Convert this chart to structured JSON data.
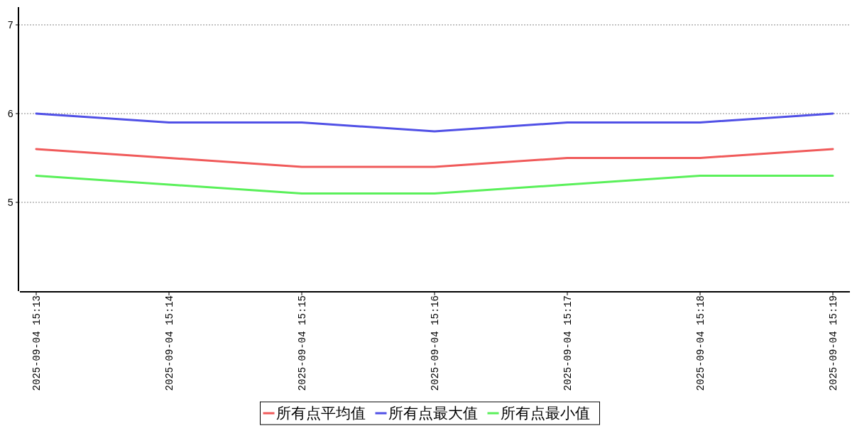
{
  "chart_data": {
    "type": "line",
    "categories": [
      "2025-09-04 15:13",
      "2025-09-04 15:14",
      "2025-09-04 15:15",
      "2025-09-04 15:16",
      "2025-09-04 15:17",
      "2025-09-04 15:18",
      "2025-09-04 15:19"
    ],
    "series": [
      {
        "name": "所有点平均值",
        "color": "#f05a5a",
        "values": [
          5.6,
          5.5,
          5.4,
          5.4,
          5.5,
          5.5,
          5.6
        ]
      },
      {
        "name": "所有点最大值",
        "color": "#5050e6",
        "values": [
          6.0,
          5.9,
          5.9,
          5.8,
          5.9,
          5.9,
          6.0
        ]
      },
      {
        "name": "所有点最小值",
        "color": "#5af05a",
        "values": [
          5.3,
          5.2,
          5.1,
          5.1,
          5.2,
          5.3,
          5.3
        ]
      }
    ],
    "ylim": [
      4,
      7.2
    ],
    "yticks": [
      5,
      6,
      7
    ],
    "grid": "y",
    "legend": "bottom",
    "marker": "none",
    "line_style": "solid"
  }
}
